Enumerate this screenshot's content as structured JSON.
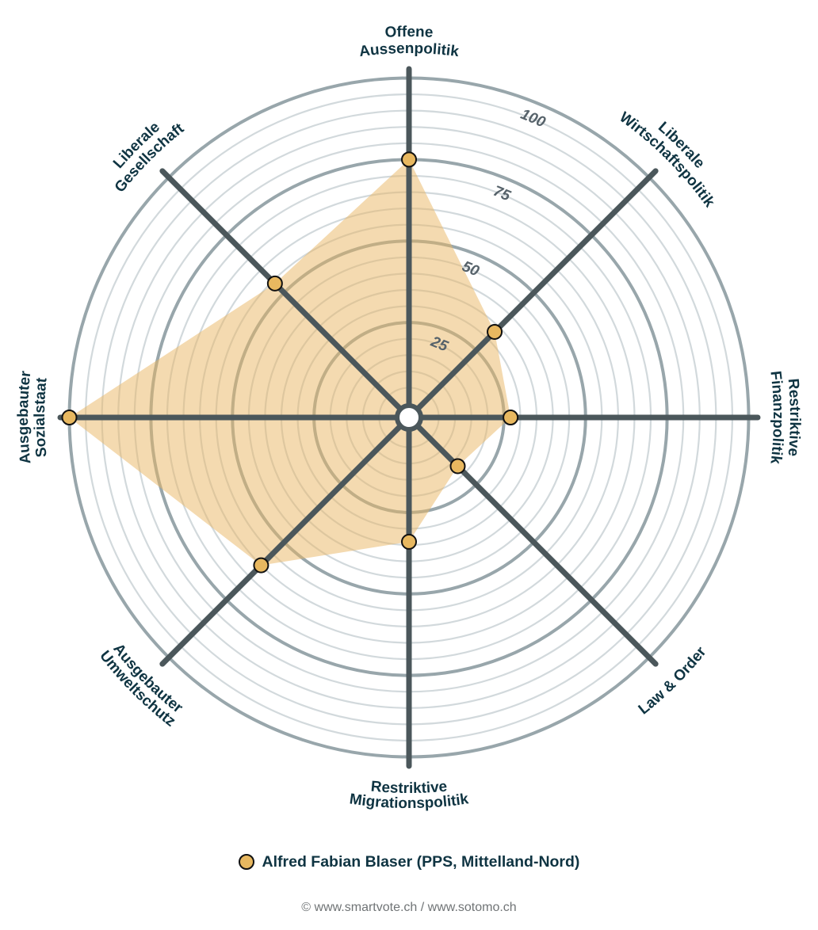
{
  "chart_data": {
    "type": "radar",
    "title": "",
    "center": [
      516,
      527
    ],
    "range": [
      0,
      100
    ],
    "major_ticks": [
      25,
      50,
      75,
      100
    ],
    "minor_step": 5,
    "tick_labels": [
      "25",
      "50",
      "75",
      "100"
    ],
    "axes": [
      {
        "name": "Offene Aussenpolitik",
        "lines": [
          "Offene",
          "Aussenpolitik"
        ],
        "angle": 0
      },
      {
        "name": "Liberale Wirtschaftspolitik",
        "lines": [
          "Liberale",
          "Wirtschaftspolitik"
        ],
        "angle": 45
      },
      {
        "name": "Restriktive Finanzpolitik",
        "lines": [
          "Restriktive",
          "Finanzpolitik"
        ],
        "angle": 90
      },
      {
        "name": "Law & Order",
        "lines": [
          "Law & Order"
        ],
        "angle": 135
      },
      {
        "name": "Restriktive Migrationspolitik",
        "lines": [
          "Restriktive",
          "Migrationspolitik"
        ],
        "angle": 180
      },
      {
        "name": "Ausgebauter Umweltschutz",
        "lines": [
          "Ausgebauter",
          "Umweltschutz"
        ],
        "angle": 225
      },
      {
        "name": "Ausgebauter Sozialstaat",
        "lines": [
          "Ausgebauter",
          "Sozialstaat"
        ],
        "angle": 270
      },
      {
        "name": "Liberale Gesellschaft",
        "lines": [
          "Liberale",
          "Gesellschaft"
        ],
        "angle": 315
      }
    ],
    "series": [
      {
        "name": "Alfred Fabian Blaser (PPS, Mittelland-Nord)",
        "values": [
          75,
          33,
          27,
          17,
          34,
          60,
          100,
          54
        ],
        "fill_color": "#e9b562",
        "marker_color": "#e8b860"
      }
    ],
    "legend_position": "bottom",
    "grid": true
  },
  "colors": {
    "axis": "#4b575b",
    "major_ring": "#98a6ab",
    "minor_ring": "#d2d9dc",
    "label": "#0f3442",
    "tick": "#56626a"
  },
  "legend": {
    "items": [
      {
        "label": "Alfred Fabian Blaser (PPS, Mittelland-Nord)",
        "color": "#e8b860"
      }
    ]
  },
  "footer": {
    "credit": "© www.smartvote.ch / www.sotomo.ch"
  }
}
